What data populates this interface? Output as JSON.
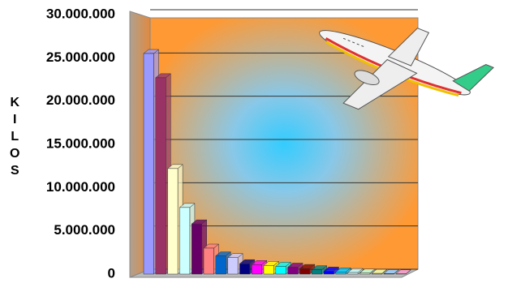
{
  "chart_data": {
    "type": "bar3d",
    "y_label": "KILOS",
    "categories": [
      null,
      null,
      null,
      null,
      null,
      null,
      null,
      null,
      null,
      null,
      null,
      null,
      null,
      null,
      null,
      null,
      null,
      null,
      null,
      null,
      null,
      null
    ],
    "values": [
      25500000,
      22700000,
      12200000,
      7700000,
      5800000,
      3000000,
      2100000,
      1900000,
      1200000,
      1100000,
      1000000,
      900000,
      800000,
      650000,
      500000,
      350000,
      250000,
      180000,
      120000,
      80000,
      50000,
      30000
    ],
    "colors": [
      "#9999ff",
      "#993366",
      "#ffffcc",
      "#ccffff",
      "#660066",
      "#ff8080",
      "#0066cc",
      "#ccccff",
      "#000080",
      "#ff00ff",
      "#ffff00",
      "#00ffff",
      "#800080",
      "#800000",
      "#008080",
      "#0000ff",
      "#00ccff",
      "#ccffff",
      "#ccffcc",
      "#ffff99",
      "#99ccff",
      "#ff99cc"
    ],
    "ylim": [
      0,
      30000000
    ],
    "yticks": [
      {
        "value": 0,
        "label": "0"
      },
      {
        "value": 5000000,
        "label": "5.000.000"
      },
      {
        "value": 10000000,
        "label": "10.000.000"
      },
      {
        "value": 15000000,
        "label": "15.000.000"
      },
      {
        "value": 20000000,
        "label": "20.000.000"
      },
      {
        "value": 25000000,
        "label": "25.000.000"
      },
      {
        "value": 30000000,
        "label": "30.000.000"
      }
    ],
    "grid": true
  }
}
